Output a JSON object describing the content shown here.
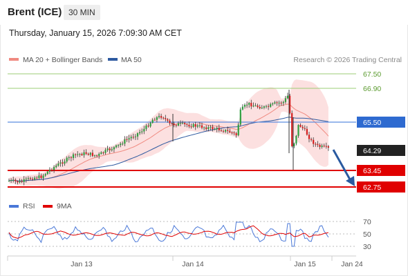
{
  "header": {
    "symbol": "Brent (ICE)",
    "interval": "30 MIN",
    "timestamp": "Thursday, January 15, 2026 7:09:30 AM CET"
  },
  "legend": {
    "items": [
      {
        "label": "MA 20 + Bollinger Bands",
        "color": "#f08a80"
      },
      {
        "label": "MA 50",
        "color": "#2e5aa0"
      }
    ],
    "copyright": "Research © 2026 Trading Central"
  },
  "price_levels": [
    {
      "value": "67.50",
      "kind": "resistance",
      "color": "#7ab648"
    },
    {
      "value": "66.90",
      "kind": "resistance",
      "color": "#7ab648"
    },
    {
      "value": "65.50",
      "kind": "pivot",
      "color": "#2e6ad0"
    },
    {
      "value": "64.29",
      "kind": "last",
      "color": "#222222"
    },
    {
      "value": "63.45",
      "kind": "support",
      "color": "#e00000"
    },
    {
      "value": "62.75",
      "kind": "support",
      "color": "#e00000"
    }
  ],
  "x_axis": {
    "labels": [
      "Jan 13",
      "Jan 14",
      "Jan 15",
      "Jan 24"
    ]
  },
  "rsi": {
    "legend": [
      {
        "label": "RSI",
        "color": "#4a78d8"
      },
      {
        "label": "9MA",
        "color": "#e00000"
      }
    ],
    "levels": [
      "70",
      "50",
      "30"
    ]
  },
  "colors": {
    "up_candle": "#2e9e3e",
    "down_candle": "#d42020",
    "bollinger_fill": "#fbdada",
    "ma20": "#f08a80",
    "ma50": "#2e5aa0",
    "arrow": "#2a5aa0"
  }
}
